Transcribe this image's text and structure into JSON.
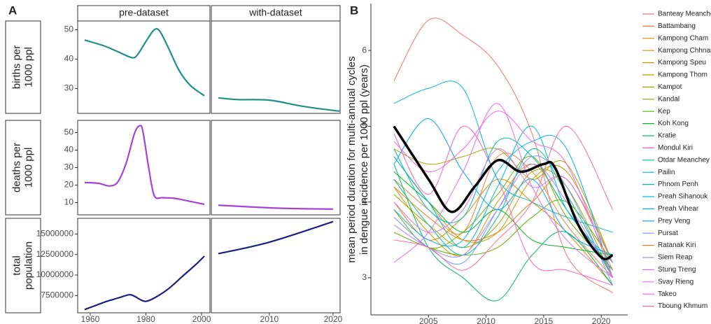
{
  "chart_data": [
    {
      "type": "line",
      "panel": "A",
      "facets": [
        "pre-dataset",
        "with-dataset"
      ],
      "xlim": [
        1955.5,
        2003
      ],
      "xticks": [
        1960,
        1980,
        2000
      ],
      "x2lim": [
        2000.9,
        2021.1
      ],
      "x2ticks": [
        2010,
        2020
      ],
      "rows": [
        {
          "ylabel": [
            "births per",
            "1000 ppl"
          ],
          "color": "#1f8f8b",
          "ylim": [
            21.5,
            53
          ],
          "yticks": [
            30,
            40,
            50
          ],
          "series": [
            {
              "x": [
                1958,
                1965,
                1970,
                1975,
                1977,
                1980,
                1983,
                1985,
                1988,
                1992,
                1996,
                2001
              ],
              "values": [
                46.5,
                44.5,
                42.5,
                40.5,
                41.5,
                46,
                50,
                49.5,
                44,
                36,
                31,
                27.5
              ]
            },
            {
              "x": [
                2002,
                2005,
                2010,
                2015,
                2020,
                2021
              ],
              "values": [
                26.8,
                26.2,
                26,
                24,
                22.5,
                22.3
              ]
            }
          ]
        },
        {
          "ylabel": [
            "deaths per",
            "1000 ppl"
          ],
          "color": "#a443d6",
          "ylim": [
            3,
            57
          ],
          "yticks": [
            10,
            20,
            30,
            40,
            50
          ],
          "series": [
            {
              "x": [
                1958,
                1963,
                1967,
                1970,
                1973,
                1976,
                1978,
                1979,
                1981,
                1983,
                1986,
                1990,
                1995,
                2001
              ],
              "values": [
                21.5,
                21,
                19.5,
                22,
                33,
                50,
                54,
                50,
                30,
                14,
                12.8,
                12.5,
                11,
                9
              ]
            },
            {
              "x": [
                2002,
                2010,
                2015,
                2020
              ],
              "values": [
                8.5,
                7,
                6.5,
                6.3
              ]
            }
          ]
        },
        {
          "ylabel": [
            "total",
            "population"
          ],
          "color": "#1c1f7f",
          "ylim": [
            5400000,
            16900000
          ],
          "yticks": [
            7500000,
            10000000,
            12500000,
            15000000
          ],
          "series": [
            {
              "x": [
                1958,
                1962,
                1966,
                1970,
                1974,
                1976,
                1978,
                1980,
                1983,
                1988,
                1993,
                1998,
                2001
              ],
              "values": [
                5800000,
                6300000,
                6800000,
                7200000,
                7600000,
                7400000,
                7000000,
                6800000,
                7200000,
                8300000,
                9800000,
                11300000,
                12300000
              ]
            },
            {
              "x": [
                2002,
                2010,
                2020
              ],
              "values": [
                12600000,
                14000000,
                16500000
              ]
            }
          ]
        }
      ]
    },
    {
      "type": "line",
      "panel": "B",
      "ylabel": [
        "mean period duration for multi-annual cycles",
        "in dengue incidence per 1000 ppl (years)"
      ],
      "xlim": [
        2000,
        2022.3
      ],
      "xticks": [
        2005,
        2010,
        2015,
        2020
      ],
      "ylim": [
        2.51,
        6.62
      ],
      "yticks": [
        3,
        4,
        5,
        6
      ],
      "x": [
        2002,
        2005,
        2008,
        2011,
        2014,
        2017,
        2021
      ],
      "series": [
        {
          "name": "Banteay Meanchey",
          "color": "#F8766D",
          "values": [
            5.6,
            6.4,
            6.2,
            5.8,
            4.9,
            3.3,
            2.8
          ]
        },
        {
          "name": "Battambang",
          "color": "#EE8044",
          "values": [
            4.3,
            3.9,
            3.6,
            4.6,
            4.4,
            3.7,
            3.0
          ]
        },
        {
          "name": "Kampong Cham",
          "color": "#E28A00",
          "values": [
            4.0,
            3.5,
            3.8,
            4.3,
            4.0,
            3.6,
            2.9
          ]
        },
        {
          "name": "Kampong Chhnang",
          "color": "#D59300",
          "values": [
            4.2,
            3.6,
            3.3,
            4.0,
            4.5,
            3.9,
            3.1
          ]
        },
        {
          "name": "Kampong Speu",
          "color": "#C59B00",
          "values": [
            4.6,
            4.0,
            3.5,
            3.6,
            4.3,
            4.4,
            3.2
          ]
        },
        {
          "name": "Kampong Thom",
          "color": "#B3A200",
          "values": [
            4.7,
            4.5,
            4.6,
            4.7,
            4.3,
            4.5,
            3.2
          ]
        },
        {
          "name": "Kampot",
          "color": "#9DA700",
          "values": [
            4.1,
            3.7,
            3.4,
            3.7,
            4.4,
            4.2,
            3.0
          ]
        },
        {
          "name": "Kandal",
          "color": "#82AD00",
          "values": [
            3.9,
            3.4,
            3.6,
            4.1,
            4.6,
            3.8,
            3.1
          ]
        },
        {
          "name": "Kep",
          "color": "#5BB300",
          "values": [
            3.6,
            3.4,
            3.3,
            3.4,
            3.8,
            4.0,
            3.2
          ]
        },
        {
          "name": "Koh Kong",
          "color": "#00B81F",
          "values": [
            4.4,
            4.0,
            3.6,
            3.9,
            3.5,
            3.4,
            3.3
          ]
        },
        {
          "name": "Kratie",
          "color": "#00BC64",
          "values": [
            4.5,
            3.4,
            3.0,
            2.7,
            3.3,
            3.6,
            2.9
          ]
        },
        {
          "name": "Mondul Kiri",
          "color": "#FF62BC",
          "values": [
            4.9,
            4.1,
            5.0,
            4.3,
            3.2,
            3.1,
            2.9
          ]
        },
        {
          "name": "Otdar Meanchey",
          "color": "#00BF96",
          "values": [
            4.3,
            3.7,
            3.3,
            3.8,
            4.7,
            4.1,
            3.0
          ]
        },
        {
          "name": "Pailin",
          "color": "#00C0AF",
          "values": [
            4.7,
            3.9,
            3.8,
            4.8,
            4.6,
            3.9,
            3.1
          ]
        },
        {
          "name": "Phnom Penh",
          "color": "#00BEC8",
          "values": [
            5.3,
            5.5,
            5.5,
            4.3,
            4.0,
            3.8,
            3.6
          ]
        },
        {
          "name": "Preah Sihanouk",
          "color": "#00BADE",
          "values": [
            4.6,
            4.0,
            3.4,
            4.2,
            5.0,
            3.9,
            3.2
          ]
        },
        {
          "name": "Preah Vihear",
          "color": "#00B2F3",
          "values": [
            3.9,
            3.5,
            3.5,
            4.4,
            4.8,
            4.7,
            3.0
          ]
        },
        {
          "name": "Prey Veng",
          "color": "#00A6FF",
          "values": [
            4.5,
            5.1,
            4.4,
            3.9,
            4.3,
            3.6,
            3.3
          ]
        },
        {
          "name": "Pursat",
          "color": "#6F9BFF",
          "values": [
            3.8,
            3.4,
            3.2,
            3.9,
            4.6,
            4.2,
            2.9
          ]
        },
        {
          "name": "Ratanak Kiri",
          "color": "#E7861B",
          "values": [
            4.2,
            3.8,
            3.5,
            3.6,
            4.0,
            4.3,
            3.1
          ]
        },
        {
          "name": "Siem Reap",
          "color": "#B385FF",
          "values": [
            3.7,
            3.4,
            3.3,
            3.9,
            4.5,
            4.0,
            3.0
          ]
        },
        {
          "name": "Stung Treng",
          "color": "#D078FF",
          "values": [
            4.0,
            3.6,
            3.9,
            4.7,
            4.2,
            4.3,
            3.2
          ]
        },
        {
          "name": "Svay Rieng",
          "color": "#E66CF4",
          "values": [
            3.2,
            3.6,
            4.4,
            5.3,
            4.2,
            3.5,
            3.0
          ]
        },
        {
          "name": "Takeo",
          "color": "#F564E3",
          "values": [
            4.8,
            4.4,
            4.7,
            5.2,
            4.8,
            4.5,
            3.0
          ]
        },
        {
          "name": "Tboung Khmum",
          "color": "#FF6A98",
          "values": [
            3.5,
            3.4,
            3.1,
            3.5,
            4.0,
            5.0,
            3.9
          ]
        }
      ],
      "mean": {
        "color": "#000000",
        "x": [
          2002,
          2005,
          2007,
          2009,
          2011,
          2013,
          2015,
          2016,
          2018,
          2020,
          2021
        ],
        "values": [
          5.0,
          4.3,
          3.87,
          4.2,
          4.55,
          4.4,
          4.5,
          4.45,
          3.7,
          3.27,
          3.3
        ]
      }
    }
  ]
}
